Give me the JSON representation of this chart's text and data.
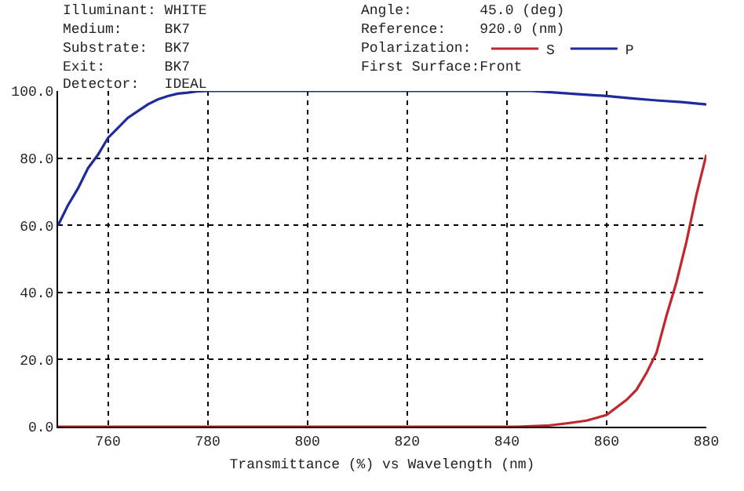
{
  "chart_data": {
    "type": "line",
    "xlabel": "Transmittance (%) vs Wavelength (nm)",
    "annotations": [
      "Illuminant: WHITE",
      "Medium:     BK7",
      "Substrate:  BK7",
      "Exit:       BK7",
      "Detector:   IDEAL",
      "Angle:        45.0 (deg)",
      "Reference:    920.0 (nm)",
      "Polarization:",
      "First Surface:Front"
    ],
    "x": [
      750,
      752,
      754,
      756,
      758,
      760,
      762,
      764,
      766,
      768,
      770,
      772,
      774,
      776,
      778,
      780,
      800,
      820,
      840,
      845,
      850,
      855,
      860,
      865,
      870,
      875,
      880
    ],
    "series": [
      {
        "name": "S",
        "color": "#c0282d",
        "x": [
          750,
          780,
          800,
          820,
          840,
          842,
          848,
          852,
          856,
          860,
          864,
          866,
          868,
          870,
          872,
          874,
          876,
          878,
          880
        ],
        "values": [
          0,
          0,
          0,
          0,
          0,
          0,
          0.3,
          1,
          1.8,
          3.5,
          8,
          11,
          16,
          22,
          33,
          43,
          55,
          69,
          81
        ]
      },
      {
        "name": "P",
        "color": "#1f2a9c",
        "values": [
          60,
          66,
          71,
          77,
          81,
          86,
          89,
          92,
          94,
          96,
          97.5,
          98.5,
          99.2,
          99.5,
          99.9,
          100,
          100,
          100,
          100,
          100,
          99.5,
          99,
          98.5,
          97.8,
          97.2,
          96.7,
          96
        ]
      }
    ],
    "xlim": [
      750,
      880
    ],
    "xticks": [
      760,
      780,
      800,
      820,
      840,
      860,
      880
    ],
    "ylim": [
      0,
      100
    ],
    "yticks": [
      {
        "value": 0,
        "label": "0.0"
      },
      {
        "value": 20,
        "label": "20.0"
      },
      {
        "value": 40,
        "label": "40.0"
      },
      {
        "value": 60,
        "label": "60.0"
      },
      {
        "value": 80,
        "label": "80.0"
      },
      {
        "value": 100,
        "label": "100.0"
      }
    ],
    "grid": true,
    "legend": "top",
    "marker": "none",
    "line_style": "solid"
  }
}
